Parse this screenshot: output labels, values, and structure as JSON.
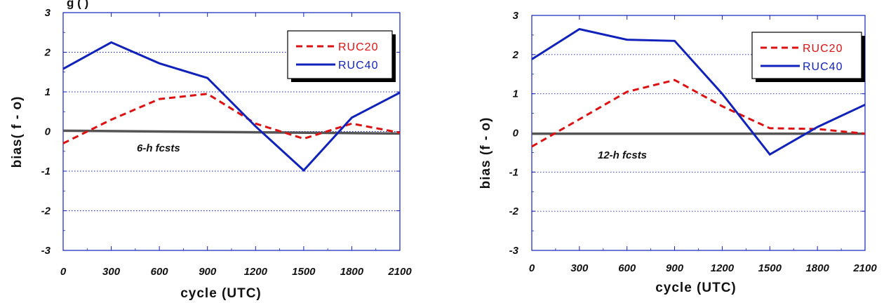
{
  "chart_data": [
    {
      "type": "line",
      "title": "g                     (                        )",
      "xlabel": "cycle (UTC)",
      "ylabel": "bias( f - o)",
      "annotation": "6-h fcsts",
      "x": [
        0,
        300,
        600,
        900,
        1200,
        1500,
        1800,
        2100
      ],
      "x_tick_labels": [
        "0",
        "300",
        "600",
        "900",
        "1200",
        "1500",
        "1800",
        "2100"
      ],
      "y_tick_labels": [
        "3",
        "2",
        "1",
        "0",
        "-1",
        "-2",
        "-3"
      ],
      "xlim": [
        0,
        2100
      ],
      "ylim": [
        -3,
        3
      ],
      "grid": "horizontal dotted",
      "legend_position": "top-right",
      "zero_line_color": "#555555",
      "series": [
        {
          "name": "RUC20",
          "color": "#dd1111",
          "style": "dashed",
          "x": [
            0,
            300,
            600,
            900,
            1200,
            1500,
            1800,
            2100
          ],
          "values": [
            -0.3,
            0.3,
            0.82,
            0.95,
            0.2,
            -0.18,
            0.2,
            -0.03
          ]
        },
        {
          "name": "RUC40",
          "color": "#1122bb",
          "style": "solid",
          "x": [
            0,
            300,
            600,
            900,
            1200,
            1500,
            1800,
            2100
          ],
          "values": [
            1.58,
            2.25,
            1.72,
            1.35,
            0.13,
            -0.98,
            0.35,
            0.98
          ]
        }
      ],
      "reference_line": {
        "x": [
          0,
          2100
        ],
        "values": [
          0.02,
          -0.05
        ]
      }
    },
    {
      "type": "line",
      "title": "",
      "xlabel": "cycle (UTC)",
      "ylabel": "bias (f - o)",
      "annotation": "12-h fcsts",
      "x": [
        0,
        300,
        600,
        900,
        1200,
        1500,
        1800,
        2100
      ],
      "x_tick_labels": [
        "0",
        "300",
        "600",
        "900",
        "1200",
        "1500",
        "1800",
        "2100"
      ],
      "y_tick_labels": [
        "3",
        "2",
        "1",
        "0",
        "-1",
        "-2",
        "-3"
      ],
      "xlim": [
        0,
        2100
      ],
      "ylim": [
        -3,
        3
      ],
      "grid": "horizontal dotted",
      "legend_position": "top-right",
      "zero_line_color": "#555555",
      "series": [
        {
          "name": "RUC20",
          "color": "#dd1111",
          "style": "dashed",
          "x": [
            0,
            300,
            600,
            900,
            1200,
            1500,
            1800,
            2100
          ],
          "values": [
            -0.35,
            0.35,
            1.05,
            1.35,
            0.68,
            0.12,
            0.1,
            -0.02
          ]
        },
        {
          "name": "RUC40",
          "color": "#1122bb",
          "style": "solid",
          "x": [
            0,
            300,
            600,
            900,
            1200,
            1500,
            1800,
            2100
          ],
          "values": [
            1.88,
            2.65,
            2.38,
            2.35,
            1.0,
            -0.55,
            0.15,
            0.72
          ]
        }
      ],
      "reference_line": {
        "x": [
          0,
          2100
        ],
        "values": [
          -0.02,
          -0.02
        ]
      }
    }
  ]
}
